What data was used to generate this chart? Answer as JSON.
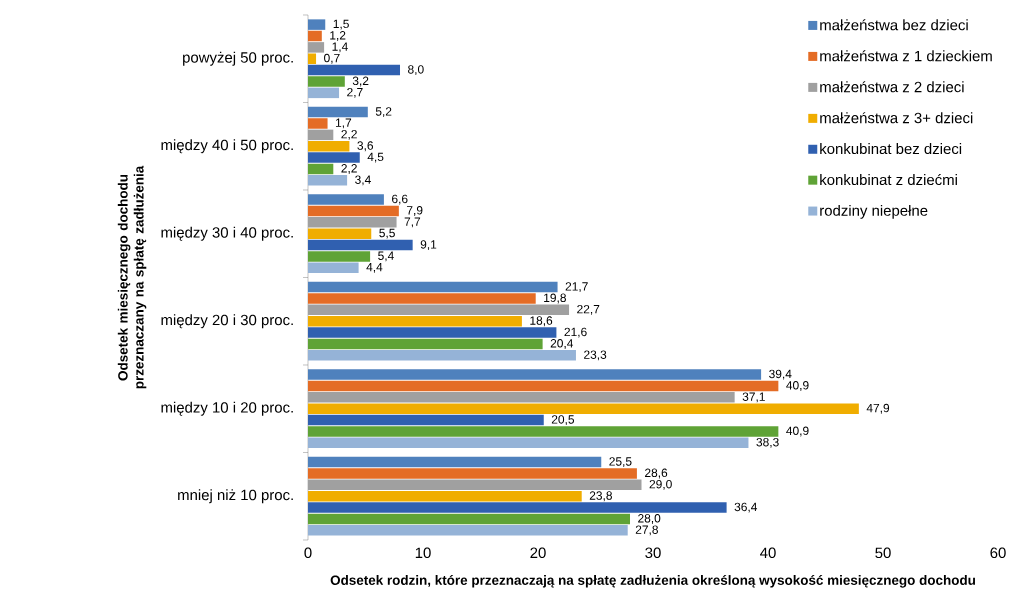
{
  "chart_data": {
    "type": "bar",
    "orientation": "horizontal",
    "xlabel": "Odsetek rodzin, które przeznaczają na spłatę zadłużenia określoną wysokość miesięcznego dochodu",
    "ylabel": "Odsetek miesięcznego dochodu przeznaczany na spłatę zadłużenia",
    "categories": [
      "powyżej 50 proc.",
      "między 40 i 50 proc.",
      "między 30 i 40 proc.",
      "między 20 i 30 proc.",
      "między 10 i 20 proc.",
      "mniej niż 10 proc."
    ],
    "xlim": [
      0,
      60
    ],
    "xticks": [
      0,
      10,
      20,
      30,
      40,
      50,
      60
    ],
    "legend": "top right",
    "series": [
      {
        "name": "małżeństwa bez dzieci",
        "color": "#4f81bd",
        "values": [
          1.5,
          5.2,
          6.6,
          21.7,
          39.4,
          25.5
        ],
        "value_labels": [
          "1,5",
          "5,2",
          "6,6",
          "21,7",
          "39,4",
          "25,5"
        ]
      },
      {
        "name": "małżeństwa z 1 dzieckiem",
        "color": "#e46c25",
        "values": [
          1.2,
          1.7,
          7.9,
          19.8,
          40.9,
          28.6
        ],
        "value_labels": [
          "1,2",
          "1,7",
          "7,9",
          "19,8",
          "40,9",
          "28,6"
        ]
      },
      {
        "name": "małżeństwa z 2 dzieci",
        "color": "#a0a0a0",
        "values": [
          1.4,
          2.2,
          7.7,
          22.7,
          37.1,
          29.0
        ],
        "value_labels": [
          "1,4",
          "2,2",
          "7,7",
          "22,7",
          "37,1",
          "29,0"
        ]
      },
      {
        "name": "małżeństwa z 3+ dzieci",
        "color": "#f0ad00",
        "values": [
          0.7,
          3.6,
          5.5,
          18.6,
          47.9,
          23.8
        ],
        "value_labels": [
          "0,7",
          "3,6",
          "5,5",
          "18,6",
          "47,9",
          "23,8"
        ]
      },
      {
        "name": "konkubinat bez dzieci",
        "color": "#3060b0",
        "values": [
          8.0,
          4.5,
          9.1,
          21.6,
          20.5,
          36.4
        ],
        "value_labels": [
          "8,0",
          "4,5",
          "9,1",
          "21,6",
          "20,5",
          "36,4"
        ]
      },
      {
        "name": "konkubinat z dziećmi",
        "color": "#5fa336",
        "values": [
          3.2,
          2.2,
          5.4,
          20.4,
          40.9,
          28.0
        ],
        "value_labels": [
          "3,2",
          "2,2",
          "5,4",
          "20,4",
          "40,9",
          "28,0"
        ]
      },
      {
        "name": "rodziny niepełne",
        "color": "#95b3d7",
        "values": [
          2.7,
          3.4,
          4.4,
          23.3,
          38.3,
          27.8
        ],
        "value_labels": [
          "2,7",
          "3,4",
          "4,4",
          "23,3",
          "38,3",
          "27,8"
        ]
      }
    ]
  }
}
